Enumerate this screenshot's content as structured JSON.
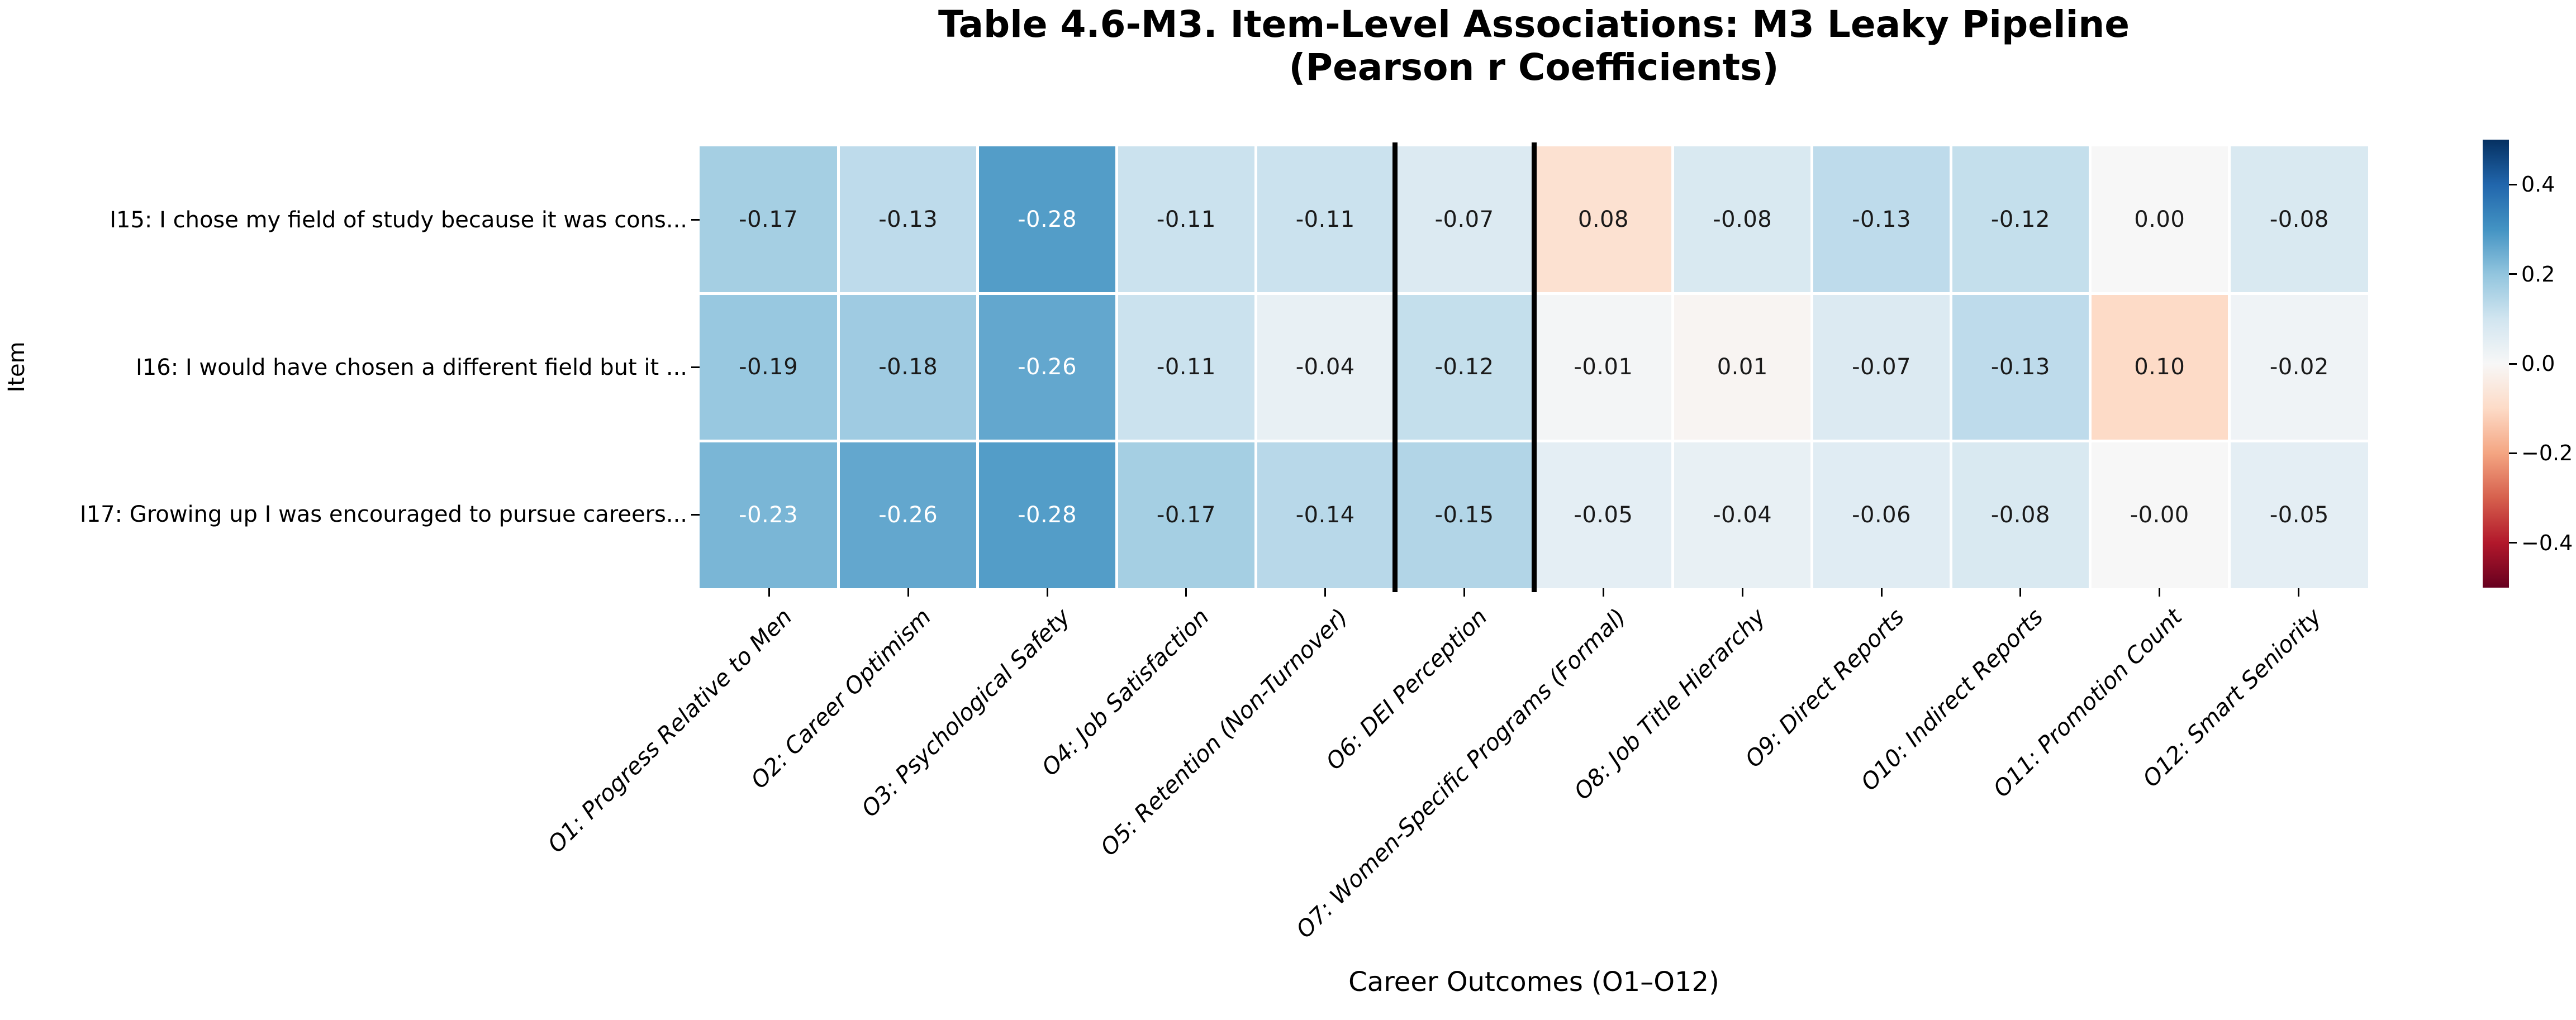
{
  "title": {
    "line1": "Table 4.6-M3. Item-Level Associations: M3 Leaky Pipeline",
    "line2": "(Pearson r Coefficients)"
  },
  "chart_data": {
    "type": "heatmap",
    "title": "Table 4.6-M3. Item-Level Associations: M3 Leaky Pipeline (Pearson r Coefficients)",
    "xlabel": "Career Outcomes (O1–O12)",
    "ylabel": "Item",
    "rows": [
      "I15: I chose my field of study because it was cons...",
      "I16: I would have chosen a different field but it ...",
      "I17: Growing up I was encouraged to pursue careers..."
    ],
    "columns": [
      "O1: Progress Relative to Men",
      "O2: Career Optimism",
      "O3: Psychological Safety",
      "O4: Job Satisfaction",
      "O5: Retention (Non-Turnover)",
      "O6: DEI Perception",
      "O7: Women-Specific Programs (Formal)",
      "O8: Job Title Hierarchy",
      "O9: Direct Reports",
      "O10: Indirect Reports",
      "O11: Promotion Count",
      "O12: Smart Seniority"
    ],
    "values": [
      [
        -0.17,
        -0.13,
        -0.28,
        -0.11,
        -0.11,
        -0.07,
        0.08,
        -0.08,
        -0.13,
        -0.12,
        0.0,
        -0.08
      ],
      [
        -0.19,
        -0.18,
        -0.26,
        -0.11,
        -0.04,
        -0.12,
        -0.01,
        0.01,
        -0.07,
        -0.13,
        0.1,
        -0.02
      ],
      [
        -0.23,
        -0.26,
        -0.28,
        -0.17,
        -0.14,
        -0.15,
        -0.05,
        -0.04,
        -0.06,
        -0.08,
        -0.0,
        -0.05
      ]
    ],
    "value_labels": [
      [
        "-0.17",
        "-0.13",
        "-0.28",
        "-0.11",
        "-0.11",
        "-0.07",
        "0.08",
        "-0.08",
        "-0.13",
        "-0.12",
        "0.00",
        "-0.08"
      ],
      [
        "-0.19",
        "-0.18",
        "-0.26",
        "-0.11",
        "-0.04",
        "-0.12",
        "-0.01",
        "0.01",
        "-0.07",
        "-0.13",
        "0.10",
        "-0.02"
      ],
      [
        "-0.23",
        "-0.26",
        "-0.28",
        "-0.17",
        "-0.14",
        "-0.15",
        "-0.05",
        "-0.04",
        "-0.06",
        "-0.08",
        "-0.00",
        "-0.05"
      ]
    ],
    "colormap": "RdBu_r",
    "vmin": -0.5,
    "vmax": 0.5,
    "colormap_anchors": [
      "#67001f",
      "#b2182b",
      "#d6604d",
      "#f4a582",
      "#fddbc7",
      "#f7f7f7",
      "#d1e5f0",
      "#92c5de",
      "#4393c3",
      "#2166ac",
      "#053061"
    ],
    "colorbar_ticks": [
      {
        "value": 0.4,
        "label": "0.4"
      },
      {
        "value": 0.2,
        "label": "0.2"
      },
      {
        "value": 0.0,
        "label": "0.0"
      },
      {
        "value": -0.2,
        "label": "−0.2"
      },
      {
        "value": -0.4,
        "label": "−0.4"
      }
    ],
    "separator_boundaries": [
      5,
      6
    ],
    "grid_gap_color": "#ffffff",
    "annotation_dark_color": "#1a1a1a",
    "annotation_light_color": "#ffffff",
    "legend_position": "right",
    "x_tick_rotation_deg": 45
  }
}
